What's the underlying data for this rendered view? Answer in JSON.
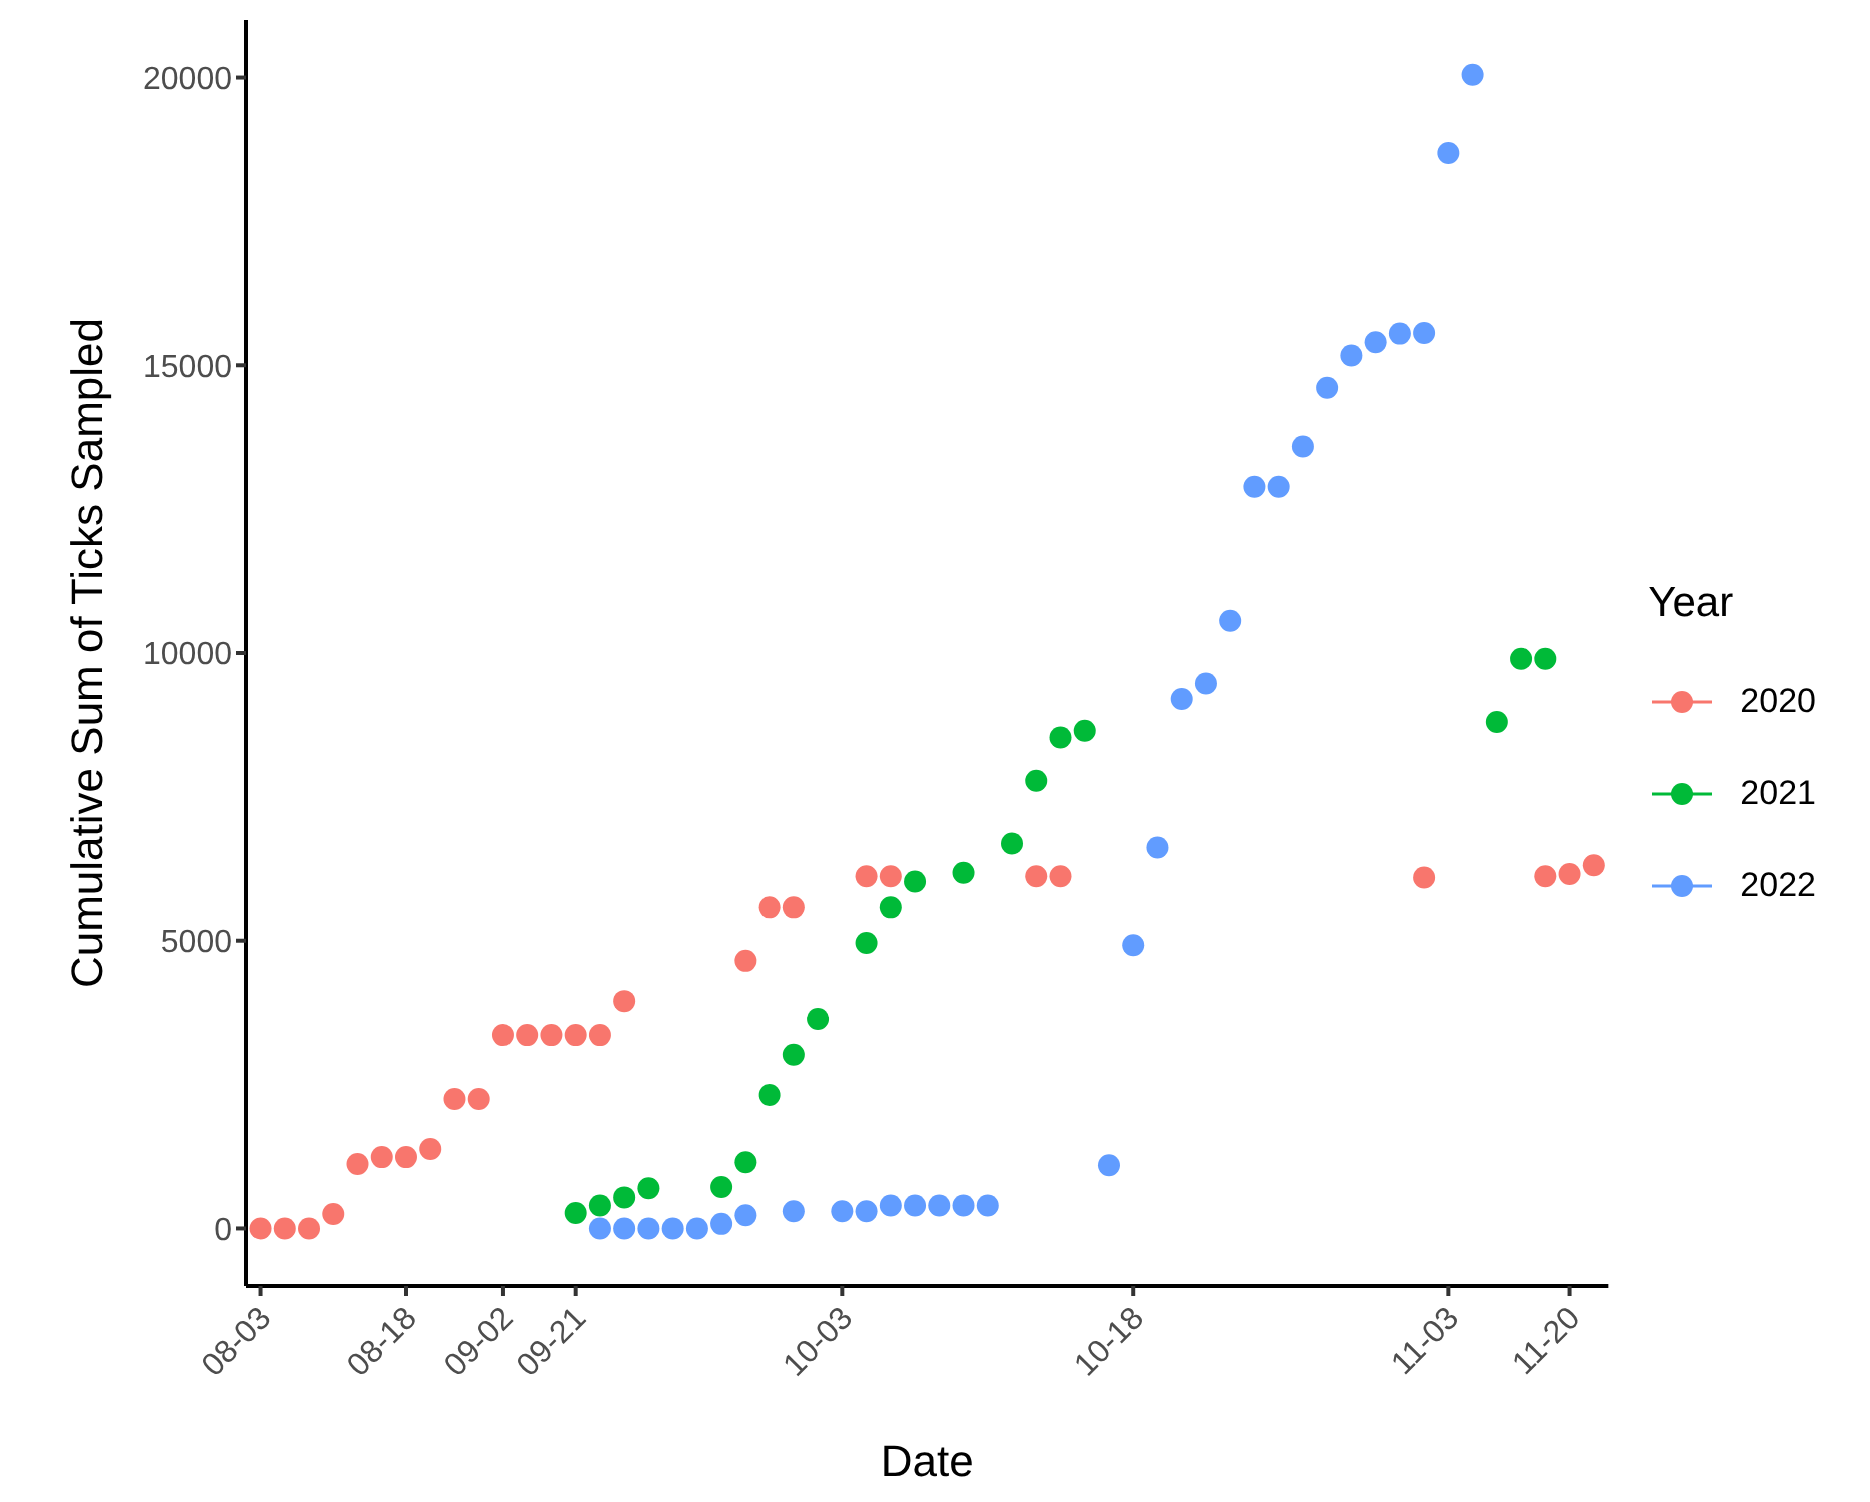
{
  "chart_data": {
    "type": "scatter",
    "xlabel": "Date",
    "ylabel": "Cumulative Sum of Ticks Sampled",
    "legend_title": "Year",
    "legend": "right",
    "grid": false,
    "marker": "circle",
    "categories": [
      "08-03",
      null,
      null,
      null,
      null,
      null,
      "08-18",
      null,
      null,
      null,
      "09-02",
      null,
      null,
      "09-21",
      null,
      null,
      null,
      null,
      null,
      null,
      null,
      null,
      null,
      null,
      "10-03",
      null,
      null,
      null,
      null,
      null,
      null,
      null,
      null,
      null,
      null,
      null,
      "10-18",
      null,
      null,
      null,
      null,
      null,
      null,
      null,
      null,
      null,
      null,
      null,
      null,
      "11-03",
      null,
      null,
      null,
      null,
      "11-20",
      null
    ],
    "ylim": [
      -1000,
      21000
    ],
    "yticks": [
      0,
      5000,
      10000,
      15000,
      20000
    ],
    "series": [
      {
        "name": "2020",
        "color": "#f8766d",
        "values": [
          0,
          0,
          0,
          250,
          1120,
          1240,
          1240,
          1380,
          2250,
          2250,
          3360,
          3360,
          3360,
          3360,
          3360,
          3950,
          null,
          null,
          null,
          null,
          4650,
          5580,
          5580,
          null,
          null,
          6120,
          6120,
          null,
          null,
          null,
          null,
          null,
          6120,
          6120,
          null,
          null,
          null,
          null,
          null,
          null,
          null,
          null,
          null,
          null,
          null,
          null,
          null,
          null,
          6100,
          null,
          null,
          null,
          null,
          6120,
          6160,
          6310
        ]
      },
      {
        "name": "2021",
        "color": "#00ba38",
        "values": [
          null,
          null,
          null,
          null,
          null,
          null,
          null,
          null,
          null,
          null,
          null,
          null,
          null,
          270,
          400,
          540,
          700,
          null,
          null,
          720,
          1150,
          2320,
          3020,
          3640,
          null,
          4960,
          5580,
          6030,
          null,
          6180,
          null,
          6690,
          7780,
          8530,
          8650,
          null,
          null,
          null,
          null,
          null,
          null,
          null,
          null,
          null,
          null,
          null,
          null,
          null,
          null,
          null,
          null,
          8800,
          9900,
          9900,
          null,
          null
        ]
      },
      {
        "name": "2022",
        "color": "#619cff",
        "values": [
          null,
          null,
          null,
          null,
          null,
          null,
          null,
          null,
          null,
          null,
          null,
          null,
          null,
          null,
          0,
          0,
          0,
          0,
          0,
          80,
          230,
          null,
          300,
          null,
          300,
          300,
          400,
          400,
          400,
          400,
          400,
          null,
          null,
          null,
          null,
          1100,
          4920,
          6620,
          9200,
          9470,
          10560,
          12890,
          12890,
          13590,
          14610,
          15170,
          15400,
          15550,
          15560,
          18690,
          20050,
          null,
          null,
          null,
          null,
          null
        ]
      }
    ]
  }
}
